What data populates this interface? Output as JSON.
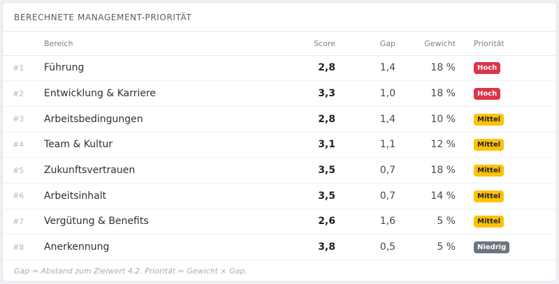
{
  "card": {
    "title": "BERECHNETE MANAGEMENT-PRIORITÄT"
  },
  "table": {
    "headers": {
      "rank": "",
      "area": "Bereich",
      "score": "Score",
      "gap": "Gap",
      "weight": "Gewicht",
      "priority": "Priorität"
    },
    "rows": [
      {
        "rank": "#1",
        "area": "Führung",
        "score": "2,8",
        "gap": "1,4",
        "weight": "18 %",
        "priority": "Hoch",
        "level": "hoch"
      },
      {
        "rank": "#2",
        "area": "Entwicklung & Karriere",
        "score": "3,3",
        "gap": "1,0",
        "weight": "18 %",
        "priority": "Hoch",
        "level": "hoch"
      },
      {
        "rank": "#3",
        "area": "Arbeitsbedingungen",
        "score": "2,8",
        "gap": "1,4",
        "weight": "10 %",
        "priority": "Mittel",
        "level": "mittel"
      },
      {
        "rank": "#4",
        "area": "Team & Kultur",
        "score": "3,1",
        "gap": "1,1",
        "weight": "12 %",
        "priority": "Mittel",
        "level": "mittel"
      },
      {
        "rank": "#5",
        "area": "Zukunftsvertrauen",
        "score": "3,5",
        "gap": "0,7",
        "weight": "18 %",
        "priority": "Mittel",
        "level": "mittel"
      },
      {
        "rank": "#6",
        "area": "Arbeitsinhalt",
        "score": "3,5",
        "gap": "0,7",
        "weight": "14 %",
        "priority": "Mittel",
        "level": "mittel"
      },
      {
        "rank": "#7",
        "area": "Vergütung & Benefits",
        "score": "2,6",
        "gap": "1,6",
        "weight": "5 %",
        "priority": "Mittel",
        "level": "mittel"
      },
      {
        "rank": "#8",
        "area": "Anerkennung",
        "score": "3,8",
        "gap": "0,5",
        "weight": "5 %",
        "priority": "Niedrig",
        "level": "niedrig"
      }
    ]
  },
  "footnote": "Gap = Abstand zum Zielwert 4.2. Priorität = Gewicht × Gap.",
  "colors": {
    "hoch": "#dc3545",
    "mittel": "#ffc107",
    "niedrig": "#6c757d"
  }
}
